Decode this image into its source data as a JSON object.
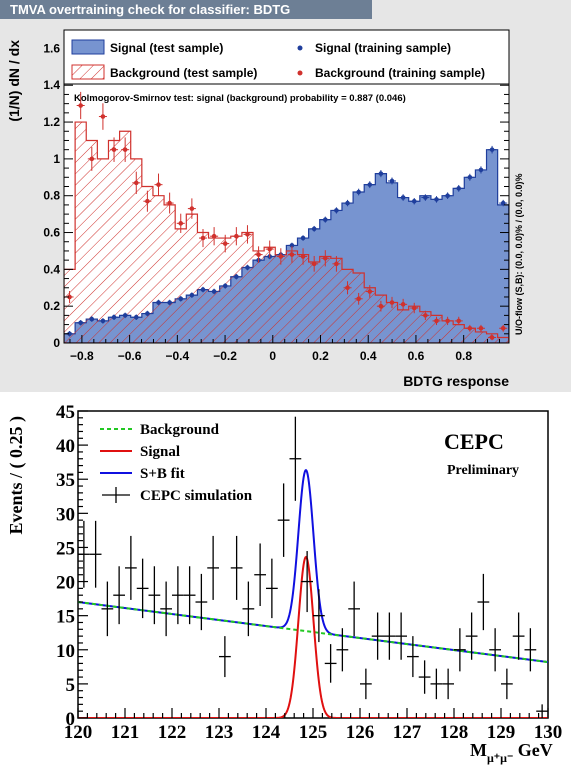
{
  "chart_data": [
    {
      "type": "histogram",
      "title": "TMVA overtraining check for classifier: BDTG",
      "xlabel": "BDTG response",
      "ylabel": "(1/N) dN / dx",
      "xlim": [
        -0.875,
        0.99
      ],
      "ylim": [
        0,
        1.7
      ],
      "xticks": [
        -0.8,
        -0.6,
        -0.4,
        -0.2,
        0,
        0.2,
        0.4,
        0.6,
        0.8
      ],
      "xtick_labels": [
        "−0.8",
        "−0.6",
        "−0.4",
        "−0.2",
        "0",
        "0.2",
        "0.4",
        "0.6",
        "0.8"
      ],
      "yticks": [
        0,
        0.2,
        0.4,
        0.6,
        0.8,
        1,
        1.2,
        1.4,
        1.6
      ],
      "ytick_labels": [
        "0",
        "0.2",
        "0.4",
        "0.6",
        "0.8",
        "1",
        "1.2",
        "1.4",
        "1.6"
      ],
      "legend": [
        {
          "label": "Signal (test sample)",
          "style": "signal-fill"
        },
        {
          "label": "Signal (training sample)",
          "style": "signal-marker"
        },
        {
          "label": "Background (test sample)",
          "style": "background-hatch"
        },
        {
          "label": "Background (training sample)",
          "style": "background-marker"
        }
      ],
      "ks_text": "Kolmogorov-Smirnov test: signal (background) probability = 0.887 (0.046)",
      "overflow_text": "U/O-flow (S,B): (0.0, 0.0)% / (0.0, 0.0)%",
      "bin_edges": {
        "start": -0.875,
        "width": 0.0466,
        "count": 40
      },
      "series": [
        {
          "name": "Signal (test sample)",
          "values": [
            0.05,
            0.11,
            0.13,
            0.12,
            0.14,
            0.15,
            0.14,
            0.16,
            0.22,
            0.22,
            0.24,
            0.26,
            0.29,
            0.28,
            0.31,
            0.36,
            0.41,
            0.45,
            0.47,
            0.48,
            0.53,
            0.57,
            0.62,
            0.67,
            0.72,
            0.76,
            0.82,
            0.86,
            0.92,
            0.87,
            0.79,
            0.77,
            0.8,
            0.78,
            0.8,
            0.84,
            0.9,
            0.94,
            1.05,
            0.75
          ]
        },
        {
          "name": "Signal (training sample)",
          "values": [
            0.05,
            0.11,
            0.13,
            0.12,
            0.14,
            0.15,
            0.14,
            0.16,
            0.22,
            0.22,
            0.24,
            0.26,
            0.29,
            0.28,
            0.31,
            0.36,
            0.41,
            0.45,
            0.47,
            0.48,
            0.53,
            0.57,
            0.62,
            0.67,
            0.72,
            0.76,
            0.82,
            0.86,
            0.92,
            0.88,
            0.79,
            0.77,
            0.79,
            0.78,
            0.8,
            0.84,
            0.9,
            0.94,
            1.05,
            0.76
          ]
        },
        {
          "name": "Background (test sample)",
          "values": [
            0.4,
            1.2,
            1.1,
            1.0,
            1.1,
            1.15,
            1.0,
            0.85,
            0.8,
            0.75,
            0.62,
            0.7,
            0.6,
            0.57,
            0.57,
            0.58,
            0.6,
            0.5,
            0.52,
            0.48,
            0.5,
            0.48,
            0.44,
            0.47,
            0.46,
            0.4,
            0.38,
            0.3,
            0.26,
            0.22,
            0.18,
            0.2,
            0.17,
            0.15,
            0.12,
            0.1,
            0.08,
            0.06,
            0.05,
            0.03
          ]
        },
        {
          "name": "Background (training sample)",
          "values": [
            0.25,
            1.29,
            1.0,
            1.23,
            1.05,
            1.05,
            0.87,
            0.77,
            0.86,
            0.76,
            0.65,
            0.73,
            0.57,
            0.58,
            0.54,
            0.58,
            0.59,
            0.48,
            0.51,
            0.47,
            0.48,
            0.47,
            0.43,
            0.46,
            0.43,
            0.3,
            0.24,
            0.28,
            0.2,
            0.22,
            0.21,
            0.19,
            0.15,
            0.12,
            0.12,
            0.12,
            0.08,
            0.08,
            0.03,
            0.08
          ]
        }
      ]
    },
    {
      "type": "scatter",
      "xlabel": "M",
      "xlabel_sub": "μ⁺μ⁻",
      "xlabel_unit": " GeV",
      "ylabel": "Events / ( 0.25 )",
      "xlim": [
        120,
        130
      ],
      "ylim": [
        0,
        45
      ],
      "xticks": [
        120,
        121,
        122,
        123,
        124,
        125,
        126,
        127,
        128,
        129,
        130
      ],
      "xtick_labels": [
        "120",
        "121",
        "122",
        "123",
        "124",
        "125",
        "126",
        "127",
        "128",
        "129",
        "130"
      ],
      "yticks": [
        0,
        5,
        10,
        15,
        20,
        25,
        30,
        35,
        40,
        45
      ],
      "ytick_labels": [
        "0",
        "5",
        "10",
        "15",
        "20",
        "25",
        "30",
        "35",
        "40",
        "45"
      ],
      "annotations": [
        "CEPC",
        "Preliminary"
      ],
      "legend": [
        {
          "label": "Background",
          "style": "background-line"
        },
        {
          "label": "Signal",
          "style": "signal-line"
        },
        {
          "label": "S+B fit",
          "style": "fit-line"
        },
        {
          "label": "CEPC simulation",
          "style": "data-marker"
        }
      ],
      "background_fit": {
        "at_120": 17.0,
        "at_130": 8.2
      },
      "signal_fit": {
        "mean": 124.85,
        "sigma": 0.16,
        "peak": 23.6
      },
      "data": {
        "x": [
          120.125,
          120.375,
          120.625,
          120.875,
          121.125,
          121.375,
          121.625,
          121.875,
          122.125,
          122.375,
          122.625,
          122.875,
          123.125,
          123.375,
          123.625,
          123.875,
          124.125,
          124.375,
          124.625,
          124.875,
          125.125,
          125.375,
          125.625,
          125.875,
          126.125,
          126.375,
          126.625,
          126.875,
          127.125,
          127.375,
          127.625,
          127.875,
          128.125,
          128.375,
          128.625,
          128.875,
          129.125,
          129.375,
          129.625,
          129.875
        ],
        "y": [
          24,
          24,
          16,
          18,
          22,
          19,
          18,
          16,
          18,
          18,
          17,
          22,
          9,
          22,
          16,
          21,
          19,
          29,
          38,
          20,
          15,
          8,
          10,
          16,
          5,
          12,
          12,
          12,
          9,
          6,
          5,
          5,
          10,
          12,
          17,
          10,
          5,
          12,
          10,
          1
        ]
      }
    }
  ]
}
